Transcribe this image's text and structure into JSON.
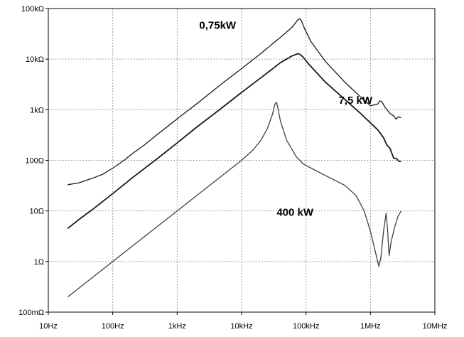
{
  "chart_data": {
    "type": "line",
    "title": "",
    "xlabel": "",
    "ylabel": "",
    "x_scale": "log",
    "y_scale": "log",
    "xlim": [
      10,
      10000000
    ],
    "ylim": [
      0.1,
      100000
    ],
    "grid": true,
    "x_ticks": [
      {
        "value": 10,
        "label": "10Hz"
      },
      {
        "value": 100,
        "label": "100Hz"
      },
      {
        "value": 1000,
        "label": "1kHz"
      },
      {
        "value": 10000,
        "label": "10kHz"
      },
      {
        "value": 100000,
        "label": "100kHz"
      },
      {
        "value": 1000000,
        "label": "1MHz"
      },
      {
        "value": 10000000,
        "label": "10MHz"
      }
    ],
    "y_ticks": [
      {
        "value": 0.1,
        "label": "100mΩ"
      },
      {
        "value": 1,
        "label": "1Ω"
      },
      {
        "value": 10,
        "label": "10Ω"
      },
      {
        "value": 100,
        "label": "100Ω"
      },
      {
        "value": 1000,
        "label": "1kΩ"
      },
      {
        "value": 10000,
        "label": "10kΩ"
      },
      {
        "value": 100000,
        "label": "100kΩ"
      }
    ],
    "series": [
      {
        "name": "0,75kW",
        "label_at": [
          2200,
          40000
        ],
        "color": "#1a1a1a",
        "points": [
          [
            20,
            33
          ],
          [
            30,
            36
          ],
          [
            50,
            45
          ],
          [
            70,
            53
          ],
          [
            100,
            70
          ],
          [
            150,
            100
          ],
          [
            200,
            135
          ],
          [
            300,
            195
          ],
          [
            500,
            330
          ],
          [
            700,
            460
          ],
          [
            1000,
            660
          ],
          [
            2000,
            1300
          ],
          [
            5000,
            3300
          ],
          [
            10000,
            6500
          ],
          [
            20000,
            13000
          ],
          [
            40000,
            27000
          ],
          [
            60000,
            42000
          ],
          [
            75000,
            60000
          ],
          [
            80000,
            63000
          ],
          [
            85000,
            57000
          ],
          [
            95000,
            40000
          ],
          [
            120000,
            22000
          ],
          [
            200000,
            9000
          ],
          [
            400000,
            3500
          ],
          [
            700000,
            1800
          ],
          [
            1000000,
            1200
          ],
          [
            1300000,
            1300
          ],
          [
            1400000,
            1500
          ],
          [
            1500000,
            1450
          ],
          [
            1700000,
            1100
          ],
          [
            2000000,
            850
          ],
          [
            2300000,
            750
          ],
          [
            2500000,
            650
          ],
          [
            2700000,
            720
          ],
          [
            3000000,
            700
          ]
        ]
      },
      {
        "name": "7,5 kW",
        "label_at": [
          320000,
          1300
        ],
        "color": "#1a1a1a",
        "points": [
          [
            20,
            4.5
          ],
          [
            30,
            6.8
          ],
          [
            50,
            11
          ],
          [
            100,
            22
          ],
          [
            200,
            45
          ],
          [
            500,
            110
          ],
          [
            1000,
            220
          ],
          [
            2000,
            450
          ],
          [
            5000,
            1100
          ],
          [
            10000,
            2200
          ],
          [
            20000,
            4300
          ],
          [
            40000,
            8500
          ],
          [
            60000,
            11500
          ],
          [
            75000,
            12800
          ],
          [
            80000,
            12500
          ],
          [
            90000,
            11000
          ],
          [
            110000,
            8000
          ],
          [
            200000,
            3500
          ],
          [
            400000,
            1600
          ],
          [
            700000,
            850
          ],
          [
            1000000,
            550
          ],
          [
            1300000,
            400
          ],
          [
            1600000,
            280
          ],
          [
            1800000,
            200
          ],
          [
            1900000,
            185
          ],
          [
            2000000,
            175
          ],
          [
            2100000,
            150
          ],
          [
            2300000,
            110
          ],
          [
            2500000,
            110
          ],
          [
            2800000,
            95
          ],
          [
            3000000,
            95
          ]
        ]
      },
      {
        "name": "400 kW",
        "label_at": [
          35000,
          8
        ],
        "color": "#404040",
        "points": [
          [
            20,
            0.2
          ],
          [
            50,
            0.5
          ],
          [
            100,
            1
          ],
          [
            200,
            2
          ],
          [
            500,
            5
          ],
          [
            1000,
            10
          ],
          [
            2000,
            20
          ],
          [
            5000,
            50
          ],
          [
            10000,
            100
          ],
          [
            15000,
            160
          ],
          [
            20000,
            250
          ],
          [
            25000,
            420
          ],
          [
            30000,
            800
          ],
          [
            33000,
            1300
          ],
          [
            35000,
            1400
          ],
          [
            37000,
            1000
          ],
          [
            40000,
            600
          ],
          [
            50000,
            250
          ],
          [
            70000,
            120
          ],
          [
            90000,
            85
          ],
          [
            120000,
            70
          ],
          [
            200000,
            50
          ],
          [
            400000,
            32
          ],
          [
            600000,
            20
          ],
          [
            800000,
            10
          ],
          [
            1000000,
            4
          ],
          [
            1200000,
            1.5
          ],
          [
            1350000,
            0.8
          ],
          [
            1450000,
            1.2
          ],
          [
            1600000,
            4
          ],
          [
            1750000,
            9
          ],
          [
            1850000,
            4
          ],
          [
            1950000,
            1.3
          ],
          [
            2100000,
            2.5
          ],
          [
            2400000,
            5
          ],
          [
            2700000,
            8
          ],
          [
            3000000,
            10
          ]
        ]
      }
    ]
  }
}
